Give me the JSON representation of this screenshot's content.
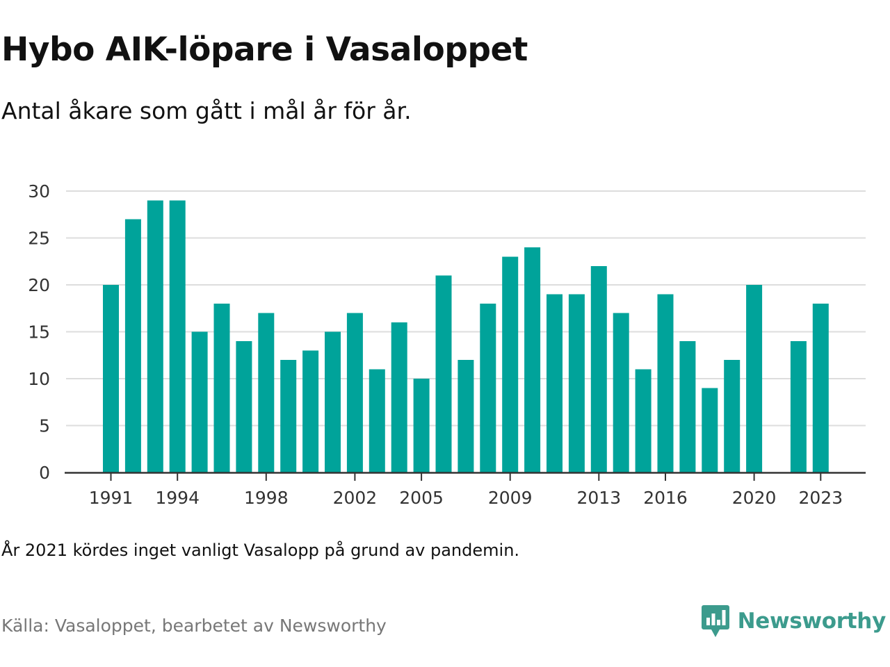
{
  "title": "Hybo AIK-löpare i Vasaloppet",
  "subtitle": "Antal åkare som gått i mål år för år.",
  "note": "År 2021 kördes inget vanligt Vasalopp på grund av pandemin.",
  "source": "Källa: Vasaloppet, bearbetet av Newsworthy",
  "brand": {
    "name": "Newsworthy",
    "icon": "newsworthy-logo-icon",
    "color": "#3c9b8d"
  },
  "colors": {
    "bar": "#00a39a",
    "grid": "#dddddd",
    "axis": "#333333"
  },
  "chart_data": {
    "type": "bar",
    "title": "Hybo AIK-löpare i Vasaloppet",
    "xlabel": "",
    "ylabel": "",
    "ylim": [
      0,
      30
    ],
    "yticks": [
      0,
      5,
      10,
      15,
      20,
      25,
      30
    ],
    "grid": true,
    "x_tick_labels": [
      "1991",
      "1994",
      "1998",
      "2002",
      "2005",
      "2009",
      "2013",
      "2016",
      "2020",
      "2023"
    ],
    "categories": [
      1991,
      1992,
      1993,
      1994,
      1995,
      1996,
      1997,
      1998,
      1999,
      2000,
      2001,
      2002,
      2003,
      2004,
      2005,
      2006,
      2007,
      2008,
      2009,
      2010,
      2011,
      2012,
      2013,
      2014,
      2015,
      2016,
      2017,
      2018,
      2019,
      2020,
      2021,
      2022,
      2023
    ],
    "values": [
      20,
      27,
      29,
      29,
      15,
      18,
      14,
      17,
      12,
      13,
      15,
      17,
      11,
      16,
      10,
      21,
      12,
      18,
      23,
      24,
      19,
      19,
      22,
      17,
      11,
      19,
      14,
      9,
      12,
      20,
      null,
      14,
      18
    ]
  }
}
